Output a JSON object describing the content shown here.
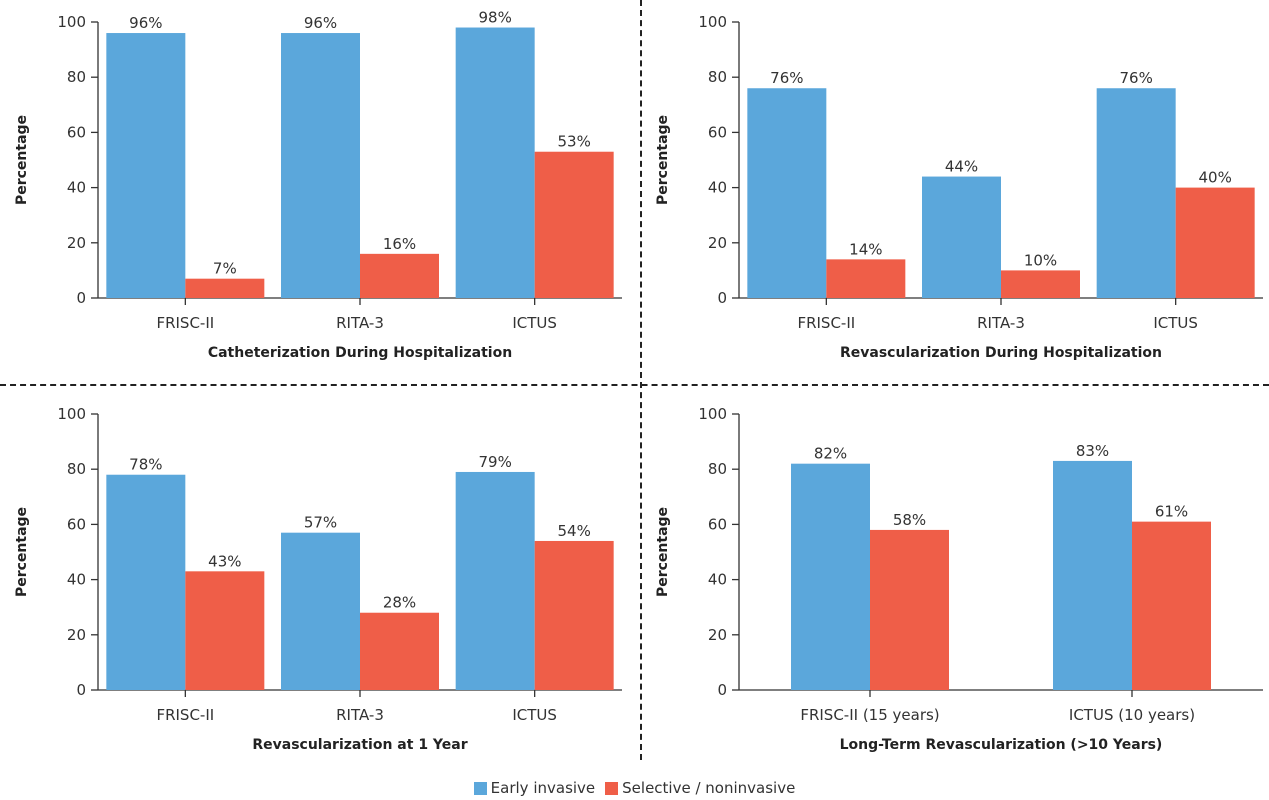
{
  "chart_data": [
    {
      "type": "bar",
      "title": "",
      "xlabel": "Catheterization During Hospitalization",
      "ylabel": "Percentage",
      "ylim": [
        0,
        100
      ],
      "yticks": [
        "0",
        "20",
        "40",
        "60",
        "80",
        "100"
      ],
      "categories": [
        "FRISC-II",
        "RITA-3",
        "ICTUS"
      ],
      "series": [
        {
          "name": "Early invasive",
          "values": [
            96,
            96,
            98
          ],
          "labels": [
            "96%",
            "96%",
            "98%"
          ]
        },
        {
          "name": "Selective / noninvasive",
          "values": [
            7,
            16,
            53
          ],
          "labels": [
            "7%",
            "16%",
            "53%"
          ]
        }
      ]
    },
    {
      "type": "bar",
      "title": "",
      "xlabel": "Revascularization During Hospitalization",
      "ylabel": "Percentage",
      "ylim": [
        0,
        100
      ],
      "yticks": [
        "0",
        "20",
        "40",
        "60",
        "80",
        "100"
      ],
      "categories": [
        "FRISC-II",
        "RITA-3",
        "ICTUS"
      ],
      "series": [
        {
          "name": "Early invasive",
          "values": [
            76,
            44,
            76
          ],
          "labels": [
            "76%",
            "44%",
            "76%"
          ]
        },
        {
          "name": "Selective / noninvasive",
          "values": [
            14,
            10,
            40
          ],
          "labels": [
            "14%",
            "10%",
            "40%"
          ]
        }
      ]
    },
    {
      "type": "bar",
      "title": "",
      "xlabel": "Revascularization at 1 Year",
      "ylabel": "Percentage",
      "ylim": [
        0,
        100
      ],
      "yticks": [
        "0",
        "20",
        "40",
        "60",
        "80",
        "100"
      ],
      "categories": [
        "FRISC-II",
        "RITA-3",
        "ICTUS"
      ],
      "series": [
        {
          "name": "Early invasive",
          "values": [
            78,
            57,
            79
          ],
          "labels": [
            "78%",
            "57%",
            "79%"
          ]
        },
        {
          "name": "Selective / noninvasive",
          "values": [
            43,
            28,
            54
          ],
          "labels": [
            "43%",
            "28%",
            "54%"
          ]
        }
      ]
    },
    {
      "type": "bar",
      "title": "",
      "xlabel": "Long-Term Revascularization (>10 Years)",
      "ylabel": "Percentage",
      "ylim": [
        0,
        100
      ],
      "yticks": [
        "0",
        "20",
        "40",
        "60",
        "80",
        "100"
      ],
      "categories": [
        "FRISC-II (15 years)",
        "ICTUS (10 years)"
      ],
      "series": [
        {
          "name": "Early invasive",
          "values": [
            82,
            83
          ],
          "labels": [
            "82%",
            "83%"
          ]
        },
        {
          "name": "Selective / noninvasive",
          "values": [
            58,
            61
          ],
          "labels": [
            "58%",
            "61%"
          ]
        }
      ]
    }
  ],
  "legend": {
    "placement": "bottom-center",
    "items": [
      {
        "label": "Early invasive",
        "color": "#5ba7db"
      },
      {
        "label": "Selective / noninvasive",
        "color": "#ef5e48"
      }
    ]
  },
  "colors": {
    "early": "#5ba7db",
    "selective": "#ef5e48",
    "axis": "#333333"
  }
}
